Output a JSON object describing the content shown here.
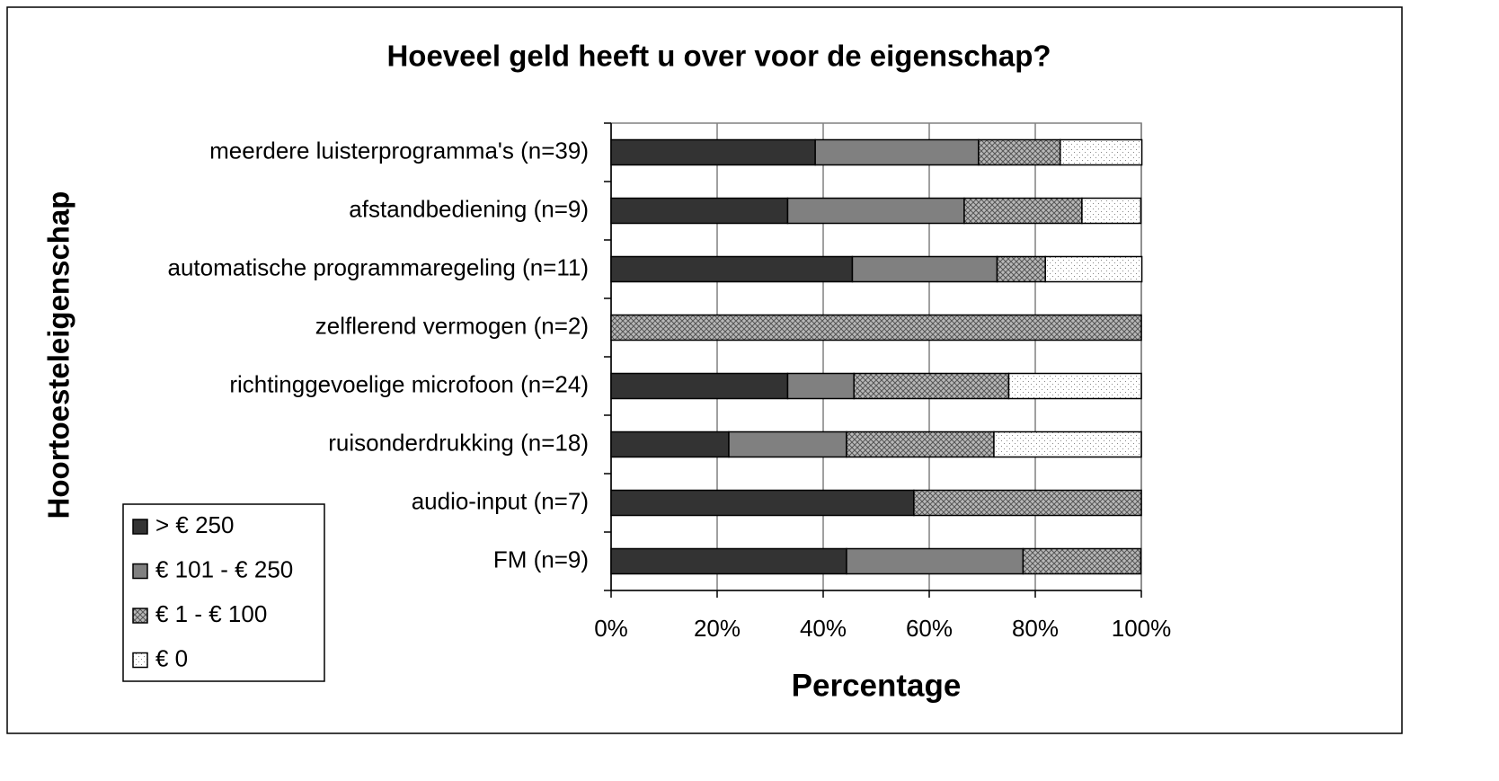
{
  "chart_data": {
    "type": "stacked-barh",
    "title": "Hoeveel geld heeft u over voor de eigenschap?",
    "xlabel": "Percentage",
    "ylabel": "Hoortoesteleigenschap",
    "categories": [
      "meerdere luisterprogramma's (n=39)",
      "afstandbediening (n=9)",
      "automatische programmaregeling (n=11)",
      "zelflerend vermogen (n=2)",
      "richtinggevoelige microfoon (n=24)",
      "ruisonderdrukking (n=18)",
      "audio-input (n=7)",
      "FM (n=9)"
    ],
    "series": [
      {
        "name": "> € 250",
        "color": "#333333",
        "pattern": "solid",
        "values": [
          38.5,
          33.3,
          45.5,
          0,
          33.3,
          22.2,
          57.1,
          44.4
        ]
      },
      {
        "name": "€ 101 - € 250",
        "color": "#808080",
        "pattern": "solid",
        "values": [
          30.8,
          33.3,
          27.3,
          0,
          12.5,
          22.2,
          0,
          33.3
        ]
      },
      {
        "name": "€ 1 - € 100",
        "color": "#b8b8b8",
        "pattern": "crosshatch",
        "values": [
          15.4,
          22.2,
          9.1,
          100,
          29.2,
          27.8,
          42.9,
          22.2
        ]
      },
      {
        "name": "€ 0",
        "color": "#ffffff",
        "pattern": "dots",
        "values": [
          15.4,
          11.1,
          18.2,
          0,
          25,
          27.8,
          0,
          0
        ]
      }
    ],
    "xlim": [
      0,
      100
    ],
    "xticks": [
      {
        "value": 0,
        "label": "0%"
      },
      {
        "value": 20,
        "label": "20%"
      },
      {
        "value": 40,
        "label": "40%"
      },
      {
        "value": 60,
        "label": "60%"
      },
      {
        "value": 80,
        "label": "80%"
      },
      {
        "value": 100,
        "label": "100%"
      }
    ],
    "grid": true,
    "legend": "lower left"
  }
}
